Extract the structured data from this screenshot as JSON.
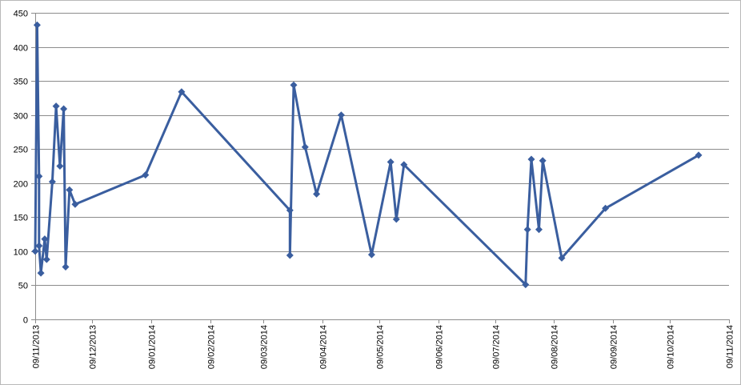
{
  "chart_data": {
    "type": "line",
    "title": "",
    "xlabel": "",
    "ylabel": "",
    "ylim": [
      0,
      450
    ],
    "yticks": [
      0,
      50,
      100,
      150,
      200,
      250,
      300,
      350,
      400,
      450
    ],
    "xlim": [
      "2013-11-09",
      "2014-11-09"
    ],
    "xticks": [
      {
        "date": "2013-11-09",
        "label": "09/11/2013"
      },
      {
        "date": "2013-12-09",
        "label": "09/12/2013"
      },
      {
        "date": "2014-01-09",
        "label": "09/01/2014"
      },
      {
        "date": "2014-02-09",
        "label": "09/02/2014"
      },
      {
        "date": "2014-03-09",
        "label": "09/03/2014"
      },
      {
        "date": "2014-04-09",
        "label": "09/04/2014"
      },
      {
        "date": "2014-05-09",
        "label": "09/05/2014"
      },
      {
        "date": "2014-06-09",
        "label": "09/06/2014"
      },
      {
        "date": "2014-07-09",
        "label": "09/07/2014"
      },
      {
        "date": "2014-08-09",
        "label": "09/08/2014"
      },
      {
        "date": "2014-09-09",
        "label": "09/09/2014"
      },
      {
        "date": "2014-10-09",
        "label": "09/10/2014"
      },
      {
        "date": "2014-11-09",
        "label": "09/11/2014"
      }
    ],
    "grid": true,
    "legend": false,
    "color": "#3a5e9f",
    "series": [
      {
        "points": [
          {
            "x": "2013-11-09",
            "y": 100
          },
          {
            "x": "2013-11-10",
            "y": 432
          },
          {
            "x": "2013-11-11",
            "y": 210
          },
          {
            "x": "2013-11-11",
            "y": 108
          },
          {
            "x": "2013-11-12",
            "y": 68
          },
          {
            "x": "2013-11-14",
            "y": 118
          },
          {
            "x": "2013-11-15",
            "y": 88
          },
          {
            "x": "2013-11-18",
            "y": 202
          },
          {
            "x": "2013-11-20",
            "y": 313
          },
          {
            "x": "2013-11-22",
            "y": 225
          },
          {
            "x": "2013-11-24",
            "y": 309
          },
          {
            "x": "2013-11-25",
            "y": 77
          },
          {
            "x": "2013-11-27",
            "y": 190
          },
          {
            "x": "2013-11-30",
            "y": 169
          },
          {
            "x": "2014-01-06",
            "y": 212
          },
          {
            "x": "2014-01-25",
            "y": 334
          },
          {
            "x": "2014-03-23",
            "y": 160
          },
          {
            "x": "2014-03-23",
            "y": 94
          },
          {
            "x": "2014-03-25",
            "y": 344
          },
          {
            "x": "2014-03-31",
            "y": 253
          },
          {
            "x": "2014-04-06",
            "y": 184
          },
          {
            "x": "2014-04-19",
            "y": 300
          },
          {
            "x": "2014-05-05",
            "y": 95
          },
          {
            "x": "2014-05-15",
            "y": 231
          },
          {
            "x": "2014-05-18",
            "y": 147
          },
          {
            "x": "2014-05-22",
            "y": 227
          },
          {
            "x": "2014-07-25",
            "y": 51
          },
          {
            "x": "2014-07-26",
            "y": 132
          },
          {
            "x": "2014-07-28",
            "y": 235
          },
          {
            "x": "2014-08-01",
            "y": 132
          },
          {
            "x": "2014-08-03",
            "y": 233
          },
          {
            "x": "2014-08-13",
            "y": 90
          },
          {
            "x": "2014-09-05",
            "y": 163
          },
          {
            "x": "2014-10-24",
            "y": 241
          }
        ]
      }
    ]
  }
}
